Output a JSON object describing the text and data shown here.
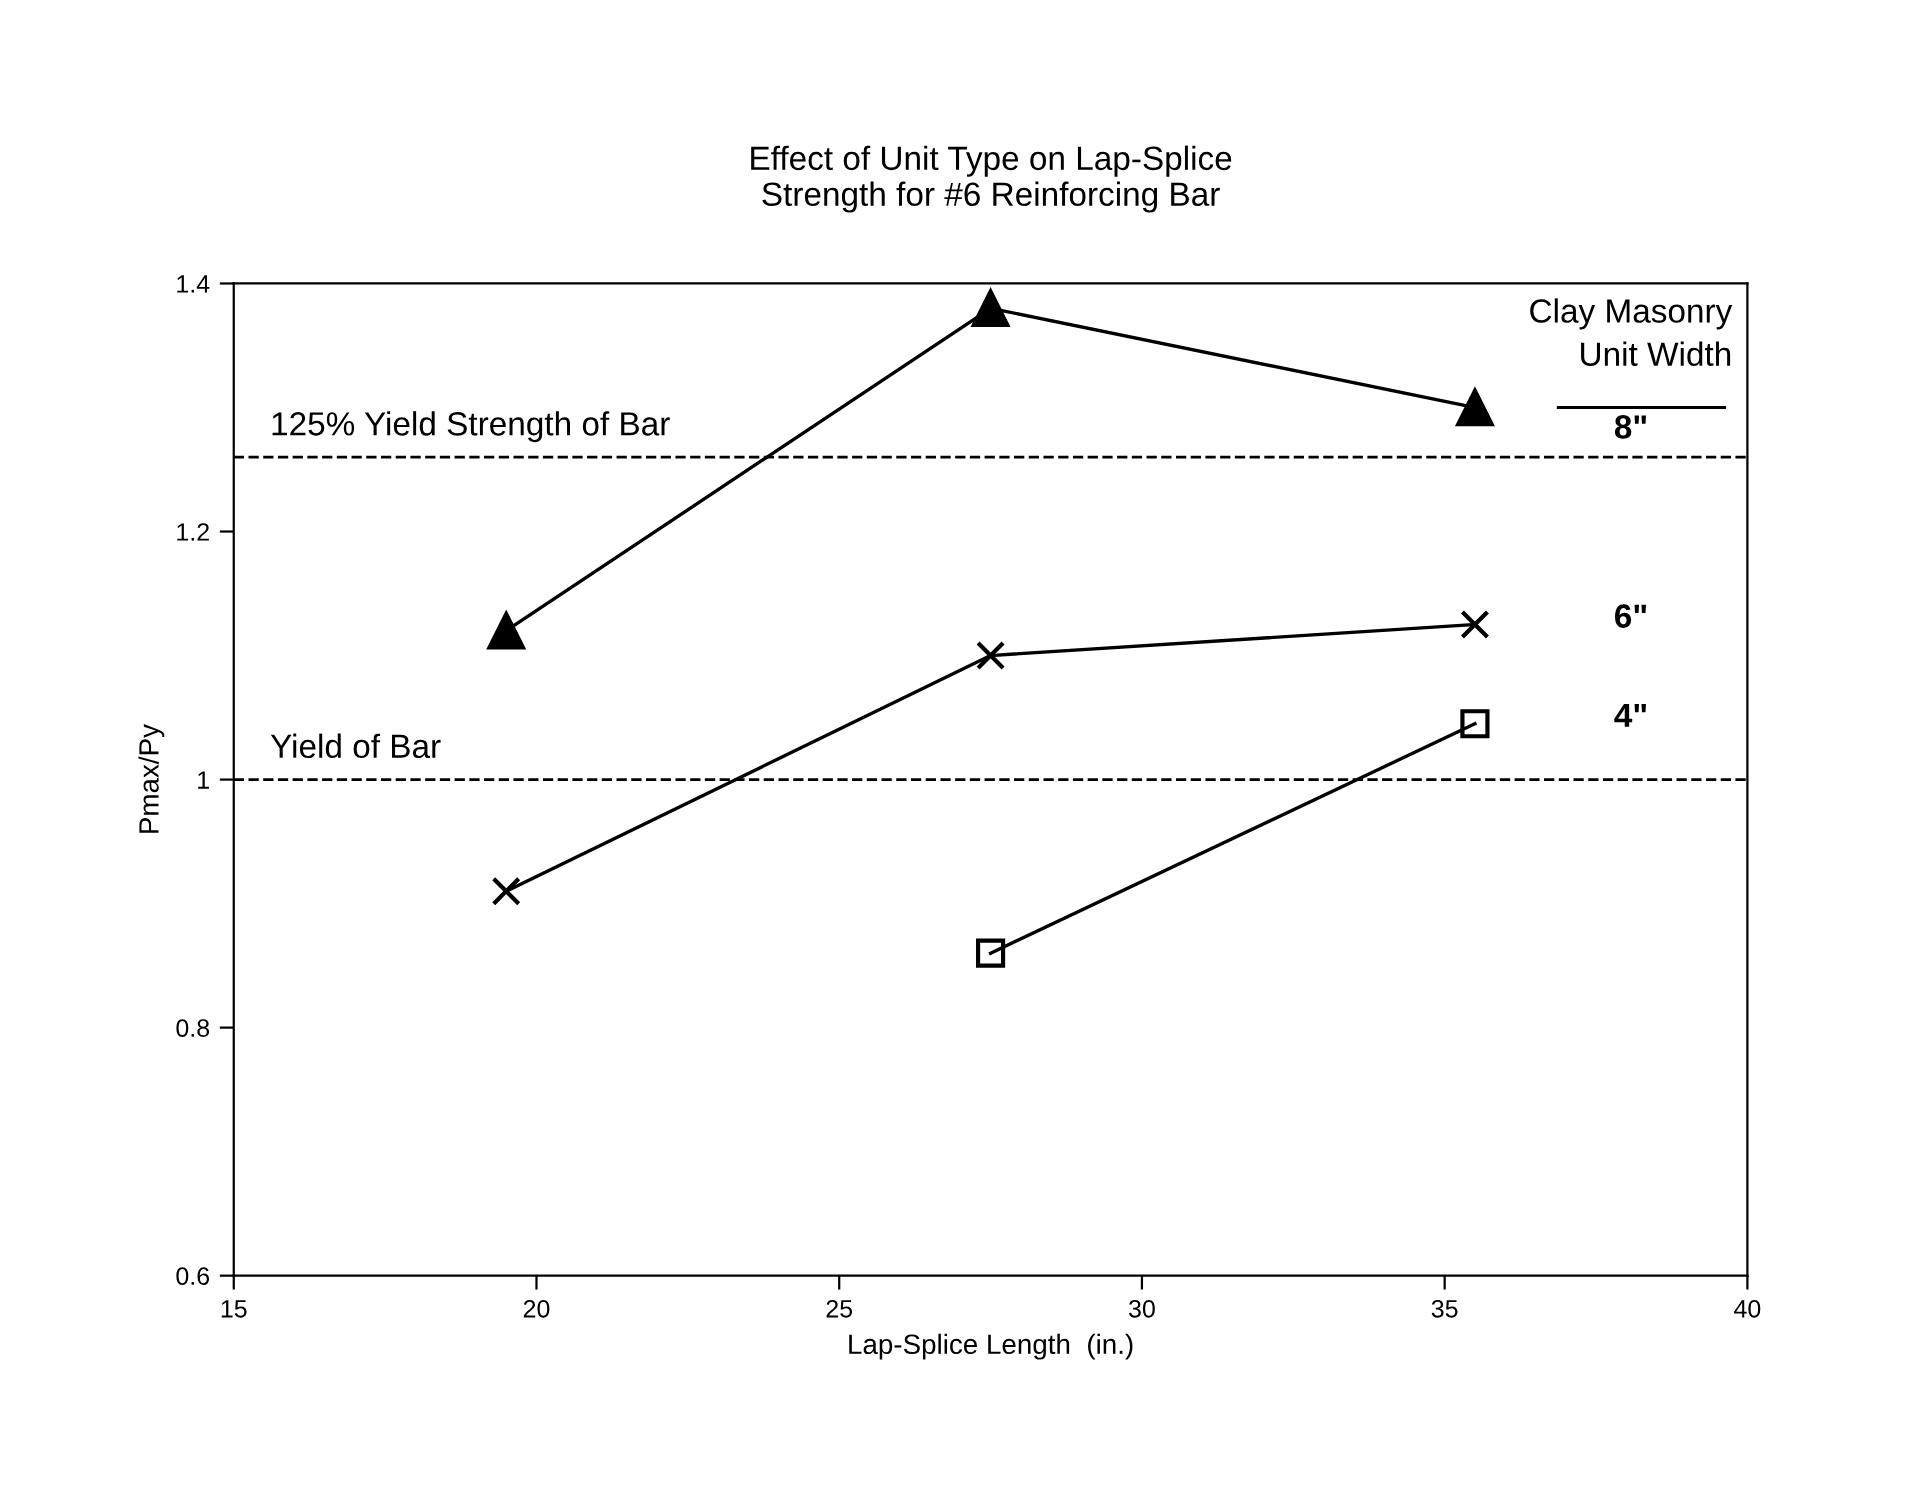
{
  "chart_data": {
    "type": "line",
    "title": "Effect of Unit Type on Lap-Splice\nStrength for #6 Reinforcing Bar",
    "xlabel": "Lap-Splice Length  (in.)",
    "ylabel": "Pmax/Py",
    "legend_title": "Clay Masonry\nUnit Width",
    "x": [
      19.5,
      27.5,
      35.5
    ],
    "series": [
      {
        "name": "8\"",
        "color": "#000000",
        "marker": "triangle",
        "values": [
          1.12,
          1.38,
          1.3
        ]
      },
      {
        "name": "6\"",
        "color": "#000000",
        "marker": "cross",
        "values": [
          0.91,
          1.1,
          1.125
        ]
      },
      {
        "name": "4\"",
        "color": "#000000",
        "marker": "square",
        "values": [
          null,
          0.86,
          1.045
        ]
      }
    ],
    "xlim": [
      15,
      40
    ],
    "xticks": [
      15,
      20,
      25,
      30,
      35,
      40
    ],
    "ylim": [
      0.6,
      1.4
    ],
    "yticks": [
      0.6,
      0.8,
      1,
      1.2,
      1.4
    ],
    "grid": false,
    "line_style": "solid",
    "ref_lines": [
      {
        "axis": "y",
        "value": 1.26,
        "label": "125% Yield Strength of Bar",
        "color": "#000000",
        "line_style": "dashed"
      },
      {
        "axis": "y",
        "value": 1.0,
        "label": "Yield of Bar",
        "color": "#000000",
        "line_style": "dashed"
      }
    ]
  }
}
